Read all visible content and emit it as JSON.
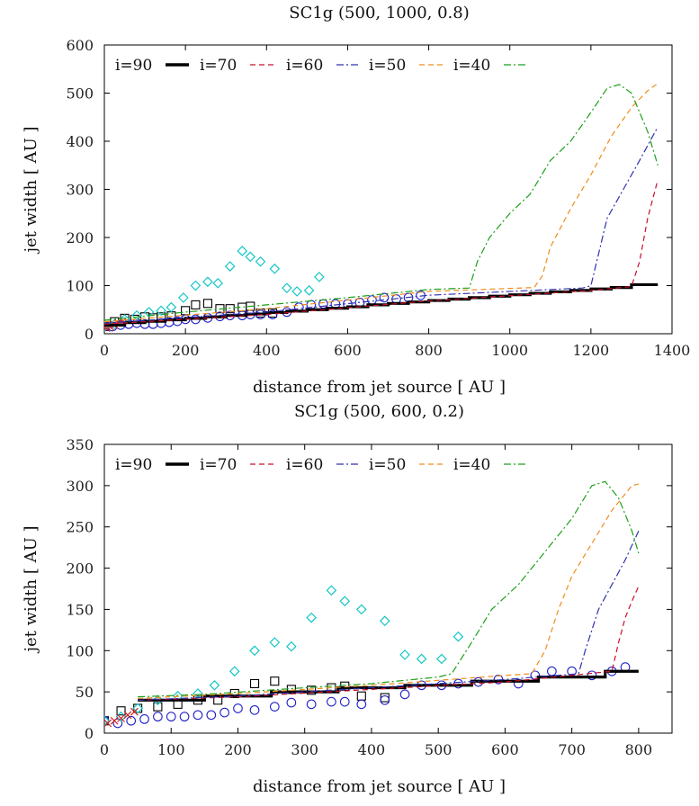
{
  "chart_data": [
    {
      "type": "line",
      "title": "SC1g (500, 1000, 0.8)",
      "xlabel": "distance from jet source [ AU ]",
      "ylabel": "jet width [ AU ]",
      "xlim": [
        0,
        1400
      ],
      "ylim": [
        0,
        600
      ],
      "xticks": [
        0,
        200,
        400,
        600,
        800,
        1000,
        1200,
        1400
      ],
      "yticks": [
        0,
        100,
        200,
        300,
        400,
        500,
        600
      ],
      "legend_position": "top-left",
      "legend": [
        "i=90",
        "i=70",
        "i=60",
        "i=50",
        "i=40"
      ],
      "series": [
        {
          "name": "i=90",
          "color": "#000000",
          "style": "solid-thick",
          "x": [
            0,
            50,
            50,
            100,
            100,
            150,
            150,
            200,
            200,
            250,
            250,
            300,
            300,
            350,
            350,
            400,
            400,
            450,
            450,
            500,
            500,
            550,
            550,
            600,
            600,
            650,
            650,
            700,
            700,
            750,
            750,
            800,
            800,
            850,
            850,
            900,
            900,
            950,
            950,
            1000,
            1000,
            1050,
            1050,
            1100,
            1100,
            1150,
            1150,
            1200,
            1200,
            1250,
            1250,
            1300,
            1300,
            1365
          ],
          "y": [
            18,
            18,
            23,
            23,
            26,
            26,
            29,
            29,
            32,
            32,
            35,
            35,
            38,
            38,
            41,
            41,
            44,
            44,
            47,
            47,
            50,
            50,
            53,
            53,
            56,
            56,
            60,
            60,
            63,
            63,
            66,
            66,
            69,
            69,
            72,
            72,
            75,
            75,
            78,
            78,
            81,
            81,
            84,
            84,
            87,
            87,
            90,
            90,
            93,
            93,
            96,
            96,
            102,
            102
          ]
        },
        {
          "name": "i=70",
          "color": "#c8102e",
          "style": "dashed",
          "x": [
            0,
            400,
            800,
            1200,
            1300,
            1320,
            1340,
            1365
          ],
          "y": [
            20,
            40,
            68,
            90,
            98,
            150,
            240,
            320
          ]
        },
        {
          "name": "i=60",
          "color": "#3030b0",
          "style": "dash-dot",
          "x": [
            0,
            400,
            800,
            1180,
            1200,
            1240,
            1280,
            1320,
            1365
          ],
          "y": [
            22,
            45,
            80,
            95,
            100,
            240,
            300,
            360,
            430
          ]
        },
        {
          "name": "i=50",
          "color": "#f08c1a",
          "style": "dashed",
          "x": [
            0,
            400,
            800,
            1060,
            1080,
            1100,
            1150,
            1200,
            1250,
            1300,
            1340,
            1365
          ],
          "y": [
            25,
            52,
            88,
            96,
            120,
            180,
            260,
            330,
            410,
            470,
            505,
            520
          ]
        },
        {
          "name": "i=40",
          "color": "#1aa01a",
          "style": "dash-dot",
          "x": [
            0,
            200,
            400,
            600,
            800,
            900,
            920,
            950,
            1000,
            1050,
            1100,
            1150,
            1200,
            1240,
            1270,
            1300,
            1340,
            1365
          ],
          "y": [
            28,
            45,
            60,
            75,
            92,
            95,
            150,
            200,
            250,
            290,
            360,
            400,
            460,
            510,
            518,
            500,
            420,
            350
          ]
        },
        {
          "name": "",
          "marker": "square",
          "color": "#000000",
          "x": [
            0,
            25,
            50,
            75,
            100,
            120,
            140,
            165,
            200,
            225,
            255,
            285,
            310,
            340,
            360,
            385,
            415
          ],
          "y": [
            15,
            25,
            32,
            30,
            35,
            33,
            35,
            37,
            48,
            60,
            63,
            52,
            52,
            55,
            57,
            43,
            43
          ]
        },
        {
          "name": "",
          "marker": "circle",
          "color": "#2020c8",
          "x": [
            0,
            20,
            40,
            60,
            80,
            100,
            120,
            140,
            160,
            180,
            200,
            225,
            255,
            285,
            310,
            340,
            360,
            385,
            415,
            450,
            480,
            510,
            540,
            570,
            600,
            630,
            660,
            690,
            720,
            750,
            780
          ],
          "y": [
            15,
            15,
            18,
            20,
            22,
            20,
            20,
            22,
            24,
            26,
            30,
            30,
            33,
            36,
            38,
            38,
            40,
            40,
            40,
            45,
            55,
            60,
            62,
            62,
            62,
            65,
            70,
            75,
            72,
            75,
            80
          ]
        },
        {
          "name": "",
          "marker": "diamond",
          "color": "#16c6c6",
          "x": [
            0,
            25,
            50,
            80,
            110,
            140,
            165,
            195,
            225,
            255,
            280,
            310,
            340,
            360,
            385,
            420,
            450,
            475,
            505,
            530
          ],
          "y": [
            15,
            20,
            30,
            38,
            45,
            48,
            55,
            75,
            100,
            108,
            105,
            140,
            172,
            160,
            150,
            135,
            95,
            88,
            90,
            118
          ]
        },
        {
          "name": "",
          "marker": "x",
          "color": "#d02020",
          "x": [
            5,
            15,
            25,
            35,
            45
          ],
          "y": [
            12,
            14,
            18,
            22,
            25
          ]
        }
      ]
    },
    {
      "type": "line",
      "title": "SC1g (500, 600, 0.2)",
      "xlabel": "distance from jet source [ AU ]",
      "ylabel": "jet width [ AU ]",
      "xlim": [
        0,
        850
      ],
      "ylim": [
        0,
        350
      ],
      "xticks": [
        0,
        100,
        200,
        300,
        400,
        500,
        600,
        700,
        800
      ],
      "yticks": [
        0,
        50,
        100,
        150,
        200,
        250,
        300,
        350
      ],
      "legend_position": "top-left",
      "legend": [
        "i=90",
        "i=70",
        "i=60",
        "i=50",
        "i=40"
      ],
      "series": [
        {
          "name": "i=90",
          "color": "#000000",
          "style": "solid-thick",
          "x": [
            50,
            150,
            150,
            250,
            250,
            350,
            350,
            450,
            450,
            550,
            550,
            650,
            650,
            750,
            750,
            800
          ],
          "y": [
            40,
            40,
            45,
            45,
            50,
            50,
            55,
            55,
            58,
            58,
            63,
            63,
            68,
            68,
            75,
            75
          ]
        },
        {
          "name": "i=70",
          "color": "#c8102e",
          "style": "dashed",
          "x": [
            50,
            200,
            400,
            600,
            760,
            770,
            780,
            790,
            800
          ],
          "y": [
            40,
            44,
            53,
            62,
            75,
            110,
            140,
            160,
            178
          ]
        },
        {
          "name": "i=60",
          "color": "#3030b0",
          "style": "dash-dot",
          "x": [
            50,
            200,
            400,
            600,
            710,
            720,
            740,
            760,
            780,
            800
          ],
          "y": [
            40,
            45,
            55,
            65,
            72,
            100,
            150,
            180,
            210,
            245
          ]
        },
        {
          "name": "i=50",
          "color": "#f08c1a",
          "style": "dashed",
          "x": [
            50,
            200,
            400,
            600,
            640,
            660,
            680,
            700,
            730,
            760,
            790,
            800
          ],
          "y": [
            42,
            48,
            58,
            70,
            72,
            100,
            150,
            190,
            230,
            270,
            300,
            302
          ]
        },
        {
          "name": "i=40",
          "color": "#1aa01a",
          "style": "dash-dot",
          "x": [
            50,
            150,
            300,
            400,
            500,
            520,
            550,
            580,
            620,
            660,
            700,
            730,
            750,
            770,
            790,
            800
          ],
          "y": [
            44,
            47,
            55,
            60,
            68,
            72,
            110,
            150,
            180,
            220,
            260,
            300,
            305,
            285,
            245,
            218
          ]
        },
        {
          "name": "",
          "marker": "square",
          "color": "#000000",
          "x": [
            0,
            25,
            50,
            80,
            110,
            140,
            170,
            195,
            225,
            255,
            280,
            310,
            340,
            360,
            385,
            420
          ],
          "y": [
            15,
            27,
            30,
            32,
            35,
            40,
            40,
            48,
            60,
            63,
            53,
            52,
            55,
            57,
            45,
            43
          ]
        },
        {
          "name": "",
          "marker": "circle",
          "color": "#2020c8",
          "x": [
            0,
            20,
            40,
            60,
            80,
            100,
            120,
            140,
            160,
            180,
            200,
            225,
            255,
            280,
            310,
            340,
            360,
            385,
            420,
            450,
            475,
            505,
            530,
            560,
            590,
            620,
            645,
            670,
            700,
            730,
            760,
            780
          ],
          "y": [
            15,
            12,
            15,
            17,
            20,
            20,
            20,
            22,
            22,
            25,
            30,
            28,
            32,
            37,
            35,
            38,
            38,
            35,
            40,
            47,
            58,
            58,
            60,
            62,
            65,
            60,
            70,
            75,
            75,
            70,
            75,
            80
          ]
        },
        {
          "name": "",
          "marker": "diamond",
          "color": "#16c6c6",
          "x": [
            0,
            25,
            50,
            80,
            110,
            140,
            165,
            195,
            225,
            255,
            280,
            310,
            340,
            360,
            385,
            420,
            450,
            475,
            505,
            530
          ],
          "y": [
            15,
            20,
            30,
            40,
            45,
            48,
            58,
            75,
            100,
            110,
            105,
            140,
            173,
            160,
            150,
            136,
            95,
            90,
            90,
            117
          ]
        },
        {
          "name": "",
          "marker": "x",
          "color": "#d02020",
          "x": [
            5,
            15,
            25,
            35,
            45
          ],
          "y": [
            12,
            15,
            18,
            22,
            26
          ]
        }
      ]
    }
  ]
}
